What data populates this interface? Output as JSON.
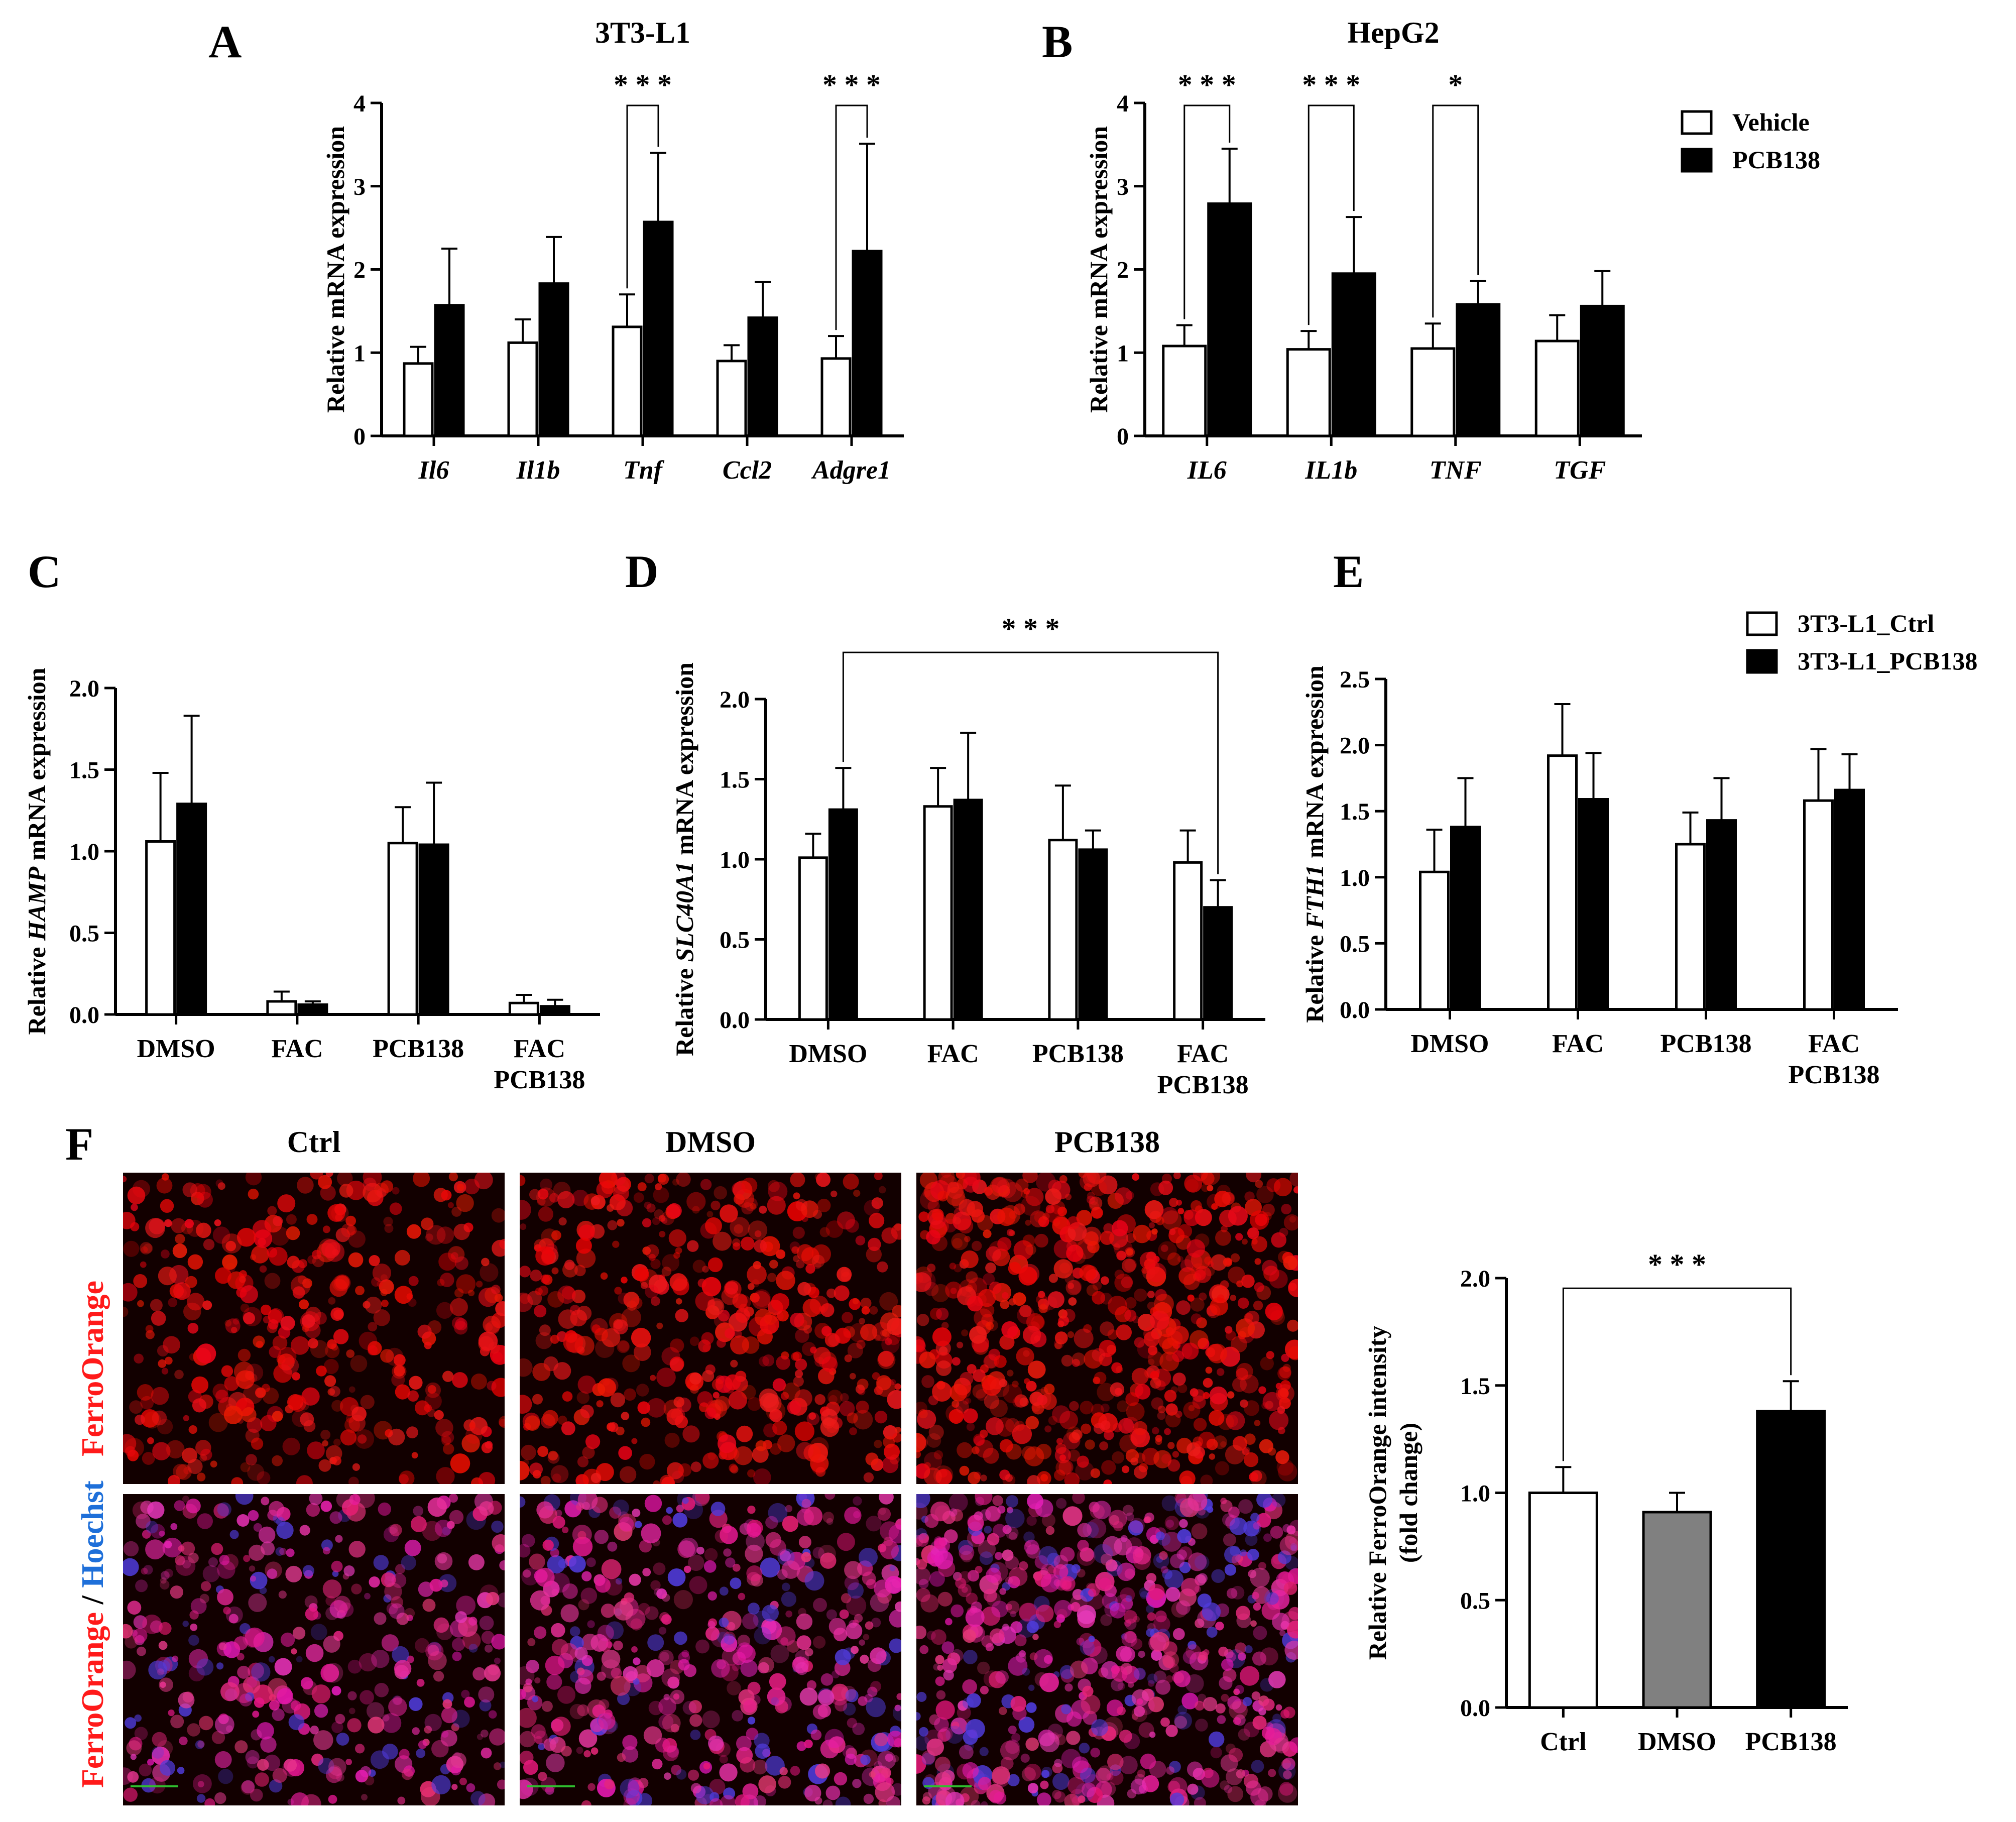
{
  "panels": {
    "A": "A",
    "B": "B",
    "C": "C",
    "D": "D",
    "E": "E",
    "F": "F"
  },
  "colors": {
    "vehicle": "#ffffff",
    "treated": "#000000",
    "dmso_gray": "#808080",
    "ferro_red": "#ff1a1a",
    "hoechst_blue": "#1e6fd9"
  },
  "legend_top": {
    "vehicle": "Vehicle",
    "pcb": "PCB138"
  },
  "legend_mid": {
    "ctrl": "3T3-L1_Ctrl",
    "pcb": "3T3-L1_PCB138"
  },
  "microscopy": {
    "columns": [
      "Ctrl",
      "DMSO",
      "PCB138"
    ],
    "row1_label": "FerroOrange",
    "row2_label_a": "FerroOrange",
    "row2_label_sep": " / ",
    "row2_label_b": "Hoechst"
  },
  "chart_data": [
    {
      "id": "A",
      "type": "bar",
      "title": "3T3-L1",
      "xlabel": "",
      "ylabel": "Relative mRNA expression",
      "categories": [
        "Il6",
        "Il1b",
        "Tnf",
        "Ccl2",
        "Adgre1"
      ],
      "ylim": [
        0,
        4
      ],
      "yticks": [
        "0",
        "1",
        "2",
        "3",
        "4"
      ],
      "series": [
        {
          "name": "Vehicle",
          "values": [
            0.87,
            1.12,
            1.31,
            0.9,
            0.93
          ],
          "errors": [
            0.2,
            0.28,
            0.39,
            0.19,
            0.27
          ]
        },
        {
          "name": "PCB138",
          "values": [
            1.57,
            1.83,
            2.57,
            1.42,
            2.22
          ],
          "errors": [
            0.68,
            0.56,
            0.83,
            0.43,
            1.29
          ]
        }
      ],
      "significance": [
        {
          "category": "Tnf",
          "label": "* * *"
        },
        {
          "category": "Adgre1",
          "label": "* * *"
        }
      ]
    },
    {
      "id": "B",
      "type": "bar",
      "title": "HepG2",
      "xlabel": "",
      "ylabel": "Relative mRNA expression",
      "categories": [
        "IL6",
        "IL1b",
        "TNF",
        "TGF"
      ],
      "ylim": [
        0,
        4
      ],
      "yticks": [
        "0",
        "1",
        "2",
        "3",
        "4"
      ],
      "series": [
        {
          "name": "Vehicle",
          "values": [
            1.08,
            1.04,
            1.05,
            1.14
          ],
          "errors": [
            0.25,
            0.22,
            0.3,
            0.31
          ]
        },
        {
          "name": "PCB138",
          "values": [
            2.79,
            1.95,
            1.58,
            1.56
          ],
          "errors": [
            0.66,
            0.68,
            0.28,
            0.42
          ]
        }
      ],
      "significance": [
        {
          "category": "IL6",
          "label": "* * *"
        },
        {
          "category": "IL1b",
          "label": "* * *"
        },
        {
          "category": "TNF",
          "label": "*"
        }
      ]
    },
    {
      "id": "C",
      "type": "bar",
      "title": "",
      "xlabel": "",
      "ylabel_pre": "Relative ",
      "ylabel_gene": "HAMP",
      "ylabel_post": " mRNA expression",
      "categories": [
        "DMSO",
        "FAC",
        "PCB138",
        "FAC\nPCB138"
      ],
      "ylim": [
        0,
        2
      ],
      "yticks": [
        "0.0",
        "0.5",
        "1.0",
        "1.5",
        "2.0"
      ],
      "series": [
        {
          "name": "3T3-L1_Ctrl",
          "values": [
            1.06,
            0.08,
            1.05,
            0.07
          ],
          "errors": [
            0.42,
            0.06,
            0.22,
            0.05
          ]
        },
        {
          "name": "3T3-L1_PCB138",
          "values": [
            1.29,
            0.06,
            1.04,
            0.05
          ],
          "errors": [
            0.54,
            0.02,
            0.38,
            0.04
          ]
        }
      ]
    },
    {
      "id": "D",
      "type": "bar",
      "title": "",
      "xlabel": "",
      "ylabel_pre": "Relative ",
      "ylabel_gene": "SLC40A1",
      "ylabel_post": " mRNA expression",
      "categories": [
        "DMSO",
        "FAC",
        "PCB138",
        "FAC\nPCB138"
      ],
      "ylim": [
        0,
        2
      ],
      "yticks": [
        "0.0",
        "0.5",
        "1.0",
        "1.5",
        "2.0"
      ],
      "series": [
        {
          "name": "3T3-L1_Ctrl",
          "values": [
            1.01,
            1.33,
            1.12,
            0.98
          ],
          "errors": [
            0.15,
            0.24,
            0.34,
            0.2
          ]
        },
        {
          "name": "3T3-L1_PCB138",
          "values": [
            1.31,
            1.37,
            1.06,
            0.7
          ],
          "errors": [
            0.26,
            0.42,
            0.12,
            0.17
          ]
        }
      ],
      "significance": [
        {
          "from_category": "DMSO",
          "to_category": "FAC\nPCB138",
          "label": "* * *"
        }
      ]
    },
    {
      "id": "E",
      "type": "bar",
      "title": "",
      "xlabel": "",
      "ylabel_pre": "Relative ",
      "ylabel_gene": "FTH1",
      "ylabel_post": " mRNA expression",
      "categories": [
        "DMSO",
        "FAC",
        "PCB138",
        "FAC\nPCB138"
      ],
      "ylim": [
        0,
        2.5
      ],
      "yticks": [
        "0.0",
        "0.5",
        "1.0",
        "1.5",
        "2.0",
        "2.5"
      ],
      "series": [
        {
          "name": "3T3-L1_Ctrl",
          "values": [
            1.04,
            1.92,
            1.25,
            1.58
          ],
          "errors": [
            0.32,
            0.39,
            0.24,
            0.39
          ]
        },
        {
          "name": "3T3-L1_PCB138",
          "values": [
            1.38,
            1.59,
            1.43,
            1.66
          ],
          "errors": [
            0.37,
            0.35,
            0.32,
            0.27
          ]
        }
      ]
    },
    {
      "id": "F",
      "type": "bar",
      "title": "",
      "xlabel": "",
      "ylabel": "Relative FerroOrange intensity",
      "ylabel2": "(fold change)",
      "categories": [
        "Ctrl",
        "DMSO",
        "PCB138"
      ],
      "ylim": [
        0,
        2
      ],
      "yticks": [
        "0.0",
        "0.5",
        "1.0",
        "1.5",
        "2.0"
      ],
      "values": [
        1.0,
        0.91,
        1.38
      ],
      "errors": [
        0.12,
        0.09,
        0.14
      ],
      "significance": [
        {
          "from_category": "Ctrl",
          "to_category": "PCB138",
          "label": "* * *"
        }
      ]
    }
  ]
}
